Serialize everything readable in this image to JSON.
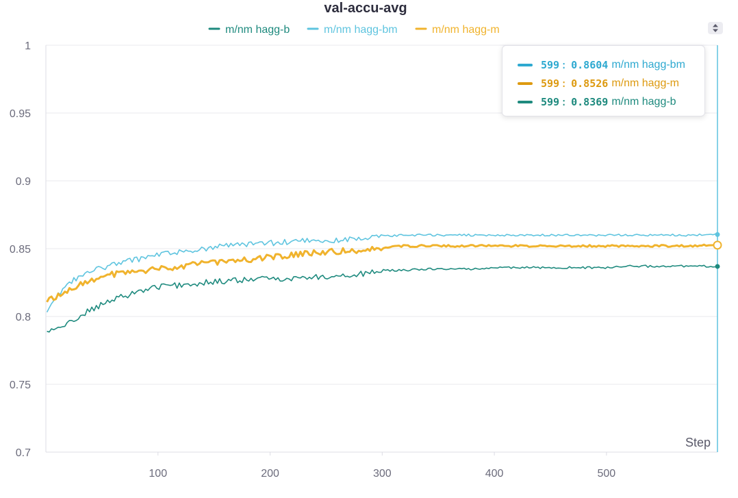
{
  "chart_data": {
    "type": "line",
    "title": "val-accu-avg",
    "xlabel": "Step",
    "ylabel": "",
    "xlim": [
      0,
      599
    ],
    "ylim": [
      0.7,
      1.0
    ],
    "xticks": [
      100,
      200,
      300,
      400,
      500
    ],
    "yticks": [
      0.7,
      0.75,
      0.8,
      0.85,
      0.9,
      0.95,
      1
    ],
    "ytick_labels": [
      "0.7",
      "0.75",
      "0.8",
      "0.85",
      "0.9",
      "0.95",
      "1"
    ],
    "grid": true,
    "legend_position": "top-center",
    "series": [
      {
        "name": "m/nm hagg-b",
        "color": "#1e8a7e",
        "x": [
          1,
          20,
          40,
          60,
          80,
          100,
          120,
          140,
          160,
          180,
          200,
          220,
          240,
          260,
          280,
          300,
          320,
          340,
          360,
          380,
          400,
          420,
          440,
          460,
          480,
          500,
          520,
          540,
          560,
          580,
          599
        ],
        "y": [
          0.788,
          0.795,
          0.805,
          0.812,
          0.818,
          0.822,
          0.823,
          0.825,
          0.826,
          0.827,
          0.828,
          0.828,
          0.829,
          0.83,
          0.831,
          0.834,
          0.834,
          0.835,
          0.835,
          0.835,
          0.836,
          0.836,
          0.836,
          0.836,
          0.836,
          0.836,
          0.837,
          0.837,
          0.837,
          0.837,
          0.8369
        ]
      },
      {
        "name": "m/nm hagg-bm",
        "color": "#5ec4df",
        "x": [
          1,
          20,
          40,
          60,
          80,
          100,
          120,
          140,
          160,
          180,
          200,
          220,
          240,
          260,
          280,
          300,
          320,
          340,
          360,
          380,
          400,
          420,
          440,
          460,
          480,
          500,
          520,
          540,
          560,
          580,
          599
        ],
        "y": [
          0.805,
          0.825,
          0.833,
          0.838,
          0.842,
          0.845,
          0.848,
          0.85,
          0.852,
          0.853,
          0.854,
          0.855,
          0.856,
          0.856,
          0.857,
          0.859,
          0.86,
          0.86,
          0.86,
          0.86,
          0.86,
          0.86,
          0.86,
          0.86,
          0.86,
          0.86,
          0.86,
          0.86,
          0.86,
          0.86,
          0.8604
        ]
      },
      {
        "name": "m/nm hagg-m",
        "color": "#f0b32d",
        "x": [
          1,
          20,
          40,
          60,
          80,
          100,
          120,
          140,
          160,
          180,
          200,
          220,
          240,
          260,
          280,
          300,
          320,
          340,
          360,
          380,
          400,
          420,
          440,
          460,
          480,
          500,
          520,
          540,
          560,
          580,
          599
        ],
        "y": [
          0.811,
          0.82,
          0.827,
          0.831,
          0.833,
          0.835,
          0.837,
          0.839,
          0.841,
          0.842,
          0.844,
          0.845,
          0.847,
          0.848,
          0.849,
          0.851,
          0.852,
          0.852,
          0.852,
          0.852,
          0.852,
          0.852,
          0.852,
          0.852,
          0.852,
          0.852,
          0.852,
          0.852,
          0.852,
          0.852,
          0.8526
        ]
      }
    ],
    "legend_order": [
      "m/nm hagg-b",
      "m/nm hagg-bm",
      "m/nm hagg-m"
    ],
    "cursor_step": 599,
    "tooltip": {
      "rows": [
        {
          "step": "599",
          "value": "0.8604",
          "name": "m/nm hagg-bm",
          "color": "#2ea9d0"
        },
        {
          "step": "599",
          "value": "0.8526",
          "name": "m/nm hagg-m",
          "color": "#dd9a10"
        },
        {
          "step": "599",
          "value": "0.8369",
          "name": "m/nm hagg-b",
          "color": "#1e8a7e"
        }
      ]
    }
  },
  "controls": {
    "sort_icon": "sort-arrows-icon"
  }
}
